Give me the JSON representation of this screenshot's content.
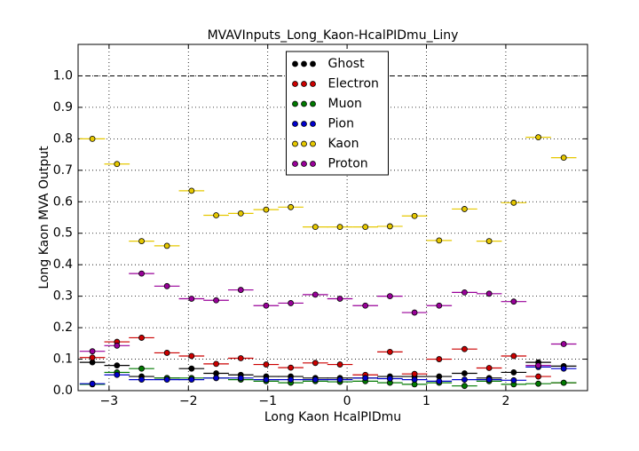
{
  "chart_data": {
    "type": "errorbar-scatter",
    "title": "MVAVInputs_Long_Kaon-HcalPIDmu_Liny",
    "x_label": "Long Kaon HcalPIDmu",
    "y_label": "Long Kaon MVA Output",
    "x": [
      -3.21,
      -2.9,
      -2.59,
      -2.27,
      -1.96,
      -1.65,
      -1.34,
      -1.02,
      -0.71,
      -0.4,
      -0.09,
      0.23,
      0.54,
      0.85,
      1.16,
      1.48,
      1.79,
      2.1,
      2.41,
      2.73
    ],
    "xerr": 0.16,
    "xlim": [
      -3.39,
      3.03
    ],
    "ylim": [
      0,
      1.1
    ],
    "xticks": [
      {
        "value": -3,
        "label": "−3"
      },
      {
        "value": -2,
        "label": "−2"
      },
      {
        "value": -1,
        "label": "−1"
      },
      0,
      1,
      2
    ],
    "yticks": [
      {
        "value": 0,
        "label": "0.0"
      },
      0.1,
      0.2,
      0.3,
      0.4,
      0.5,
      0.6,
      0.7,
      0.8,
      0.9,
      {
        "value": 1,
        "label": "1.0"
      }
    ],
    "hline": 1,
    "grid": true,
    "legend": "upper center",
    "series": [
      {
        "name": "Ghost",
        "color": "#000000",
        "values": [
          0.09,
          0.08,
          0.045,
          0.04,
          0.07,
          0.055,
          0.05,
          0.045,
          0.045,
          0.04,
          0.04,
          0.04,
          0.045,
          0.045,
          0.045,
          0.055,
          0.04,
          0.058,
          0.09,
          0.078
        ]
      },
      {
        "name": "Electron",
        "color": "#cc0000",
        "values": [
          0.105,
          0.155,
          0.168,
          0.12,
          0.11,
          0.085,
          0.103,
          0.083,
          0.073,
          0.088,
          0.083,
          0.05,
          0.123,
          0.053,
          0.1,
          0.132,
          0.072,
          0.11,
          0.045,
          0.025
        ]
      },
      {
        "name": "Muon",
        "color": "#007a00",
        "values": [
          0.02,
          0.058,
          0.07,
          0.04,
          0.04,
          0.04,
          0.035,
          0.03,
          0.025,
          0.03,
          0.028,
          0.03,
          0.025,
          0.02,
          0.025,
          0.015,
          0.03,
          0.02,
          0.022,
          0.025
        ]
      },
      {
        "name": "Pion",
        "color": "#0000cc",
        "values": [
          0.022,
          0.05,
          0.035,
          0.035,
          0.035,
          0.04,
          0.04,
          0.035,
          0.035,
          0.035,
          0.035,
          0.04,
          0.038,
          0.035,
          0.03,
          0.035,
          0.035,
          0.033,
          0.075,
          0.07
        ]
      },
      {
        "name": "Kaon",
        "color": "#e6c800",
        "values": [
          0.8,
          0.72,
          0.475,
          0.46,
          0.635,
          0.557,
          0.563,
          0.575,
          0.583,
          0.52,
          0.52,
          0.52,
          0.522,
          0.555,
          0.477,
          0.577,
          0.475,
          0.597,
          0.805,
          0.74
        ]
      },
      {
        "name": "Proton",
        "color": "#990099",
        "values": [
          0.125,
          0.143,
          0.372,
          0.332,
          0.292,
          0.287,
          0.32,
          0.27,
          0.278,
          0.305,
          0.292,
          0.27,
          0.3,
          0.248,
          0.27,
          0.312,
          0.308,
          0.283,
          0.08,
          0.148
        ]
      }
    ]
  }
}
